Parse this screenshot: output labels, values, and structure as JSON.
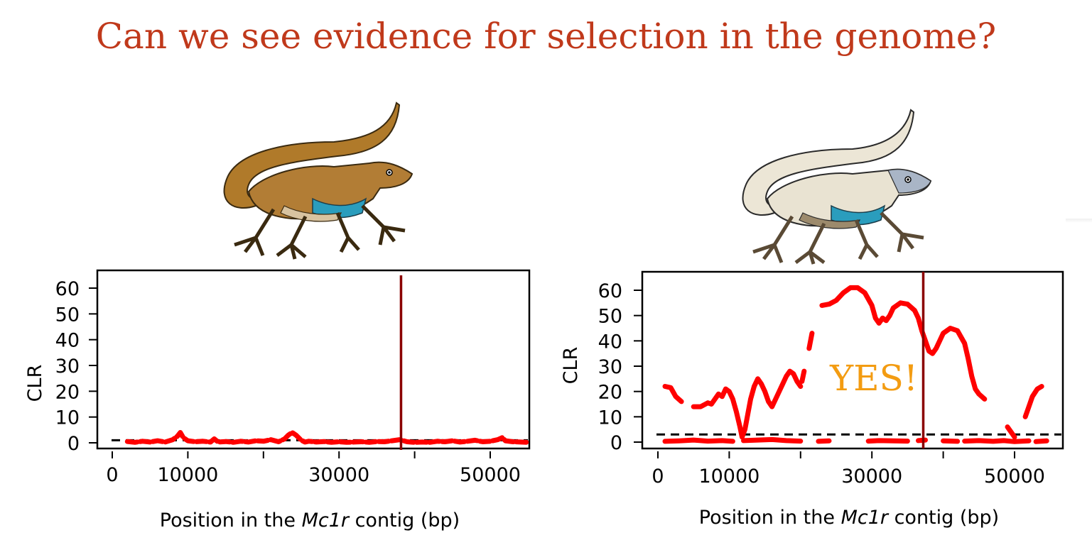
{
  "slide": {
    "title": "Can we see evidence for selection in the genome?"
  },
  "colors": {
    "title": "#c0391b",
    "series": "#ff0000",
    "gene_line": "#8b0000",
    "threshold": "#000000",
    "annotation": "#f39c12"
  },
  "images": {
    "left": "brown-lizard-illustration",
    "right": "pale-lizard-illustration"
  },
  "chart_data": [
    {
      "type": "scatter",
      "title": "",
      "ylabel": "CLR",
      "xlabel_parts": [
        "Position in the ",
        "Mc1r",
        " contig (bp)"
      ],
      "xlim": [
        0,
        56000
      ],
      "ylim": [
        -3,
        66
      ],
      "x_ticks": [
        0,
        10000,
        30000,
        50000
      ],
      "x_minor_ticks": [
        20000,
        40000
      ],
      "y_ticks": [
        0,
        10,
        20,
        30,
        40,
        50,
        60
      ],
      "threshold": 1,
      "gene_position": 38200,
      "annotation": "",
      "series": [
        {
          "segments": [
            [
              [
                2000,
                0.5
              ],
              [
                3000,
                0.2
              ],
              [
                4000,
                0.6
              ],
              [
                5000,
                0.3
              ],
              [
                6000,
                0.8
              ],
              [
                7000,
                0.3
              ],
              [
                8000,
                1.2
              ],
              [
                8600,
                2.5
              ],
              [
                9000,
                4
              ],
              [
                9400,
                2
              ],
              [
                10000,
                0.8
              ],
              [
                11000,
                0.4
              ],
              [
                12000,
                0.6
              ],
              [
                13000,
                0.3
              ],
              [
                13500,
                1.5
              ],
              [
                14000,
                0.3
              ],
              [
                15000,
                0.5
              ],
              [
                16000,
                0.2
              ],
              [
                17000,
                0.6
              ],
              [
                18000,
                0.3
              ],
              [
                19000,
                0.8
              ],
              [
                20000,
                0.6
              ],
              [
                21000,
                1.2
              ],
              [
                22000,
                0.4
              ],
              [
                22800,
                1.5
              ],
              [
                23300,
                3
              ],
              [
                23800,
                4
              ],
              [
                24300,
                3
              ],
              [
                25000,
                1
              ],
              [
                25500,
                0.3
              ],
              [
                26000,
                0.6
              ],
              [
                27000,
                0.3
              ],
              [
                28000,
                0.5
              ],
              [
                29000,
                0.2
              ],
              [
                30000,
                0.4
              ],
              [
                31000,
                0.2
              ],
              [
                32000,
                0.3
              ],
              [
                33000,
                0.4
              ],
              [
                34000,
                0.2
              ],
              [
                35000,
                0.5
              ],
              [
                36000,
                0.4
              ],
              [
                37000,
                0.8
              ],
              [
                38000,
                1.2
              ],
              [
                39000,
                0.4
              ],
              [
                40000,
                0.2
              ],
              [
                41000,
                0.3
              ],
              [
                42000,
                0.2
              ],
              [
                43000,
                0.6
              ],
              [
                44000,
                0.4
              ],
              [
                45000,
                0.8
              ],
              [
                46000,
                0.3
              ],
              [
                47000,
                0.6
              ],
              [
                48000,
                1
              ],
              [
                49000,
                0.4
              ],
              [
                50000,
                0.6
              ],
              [
                51000,
                1.2
              ],
              [
                51600,
                2
              ],
              [
                52000,
                0.8
              ],
              [
                53000,
                0.4
              ],
              [
                54000,
                0.3
              ],
              [
                55000,
                0.2
              ]
            ]
          ]
        }
      ]
    },
    {
      "type": "scatter",
      "title": "",
      "ylabel": "CLR",
      "xlabel_parts": [
        "Position in the ",
        "Mc1r",
        " contig (bp)"
      ],
      "xlim": [
        0,
        56000
      ],
      "ylim": [
        -2,
        66
      ],
      "x_ticks": [
        0,
        10000,
        30000,
        50000
      ],
      "x_minor_ticks": [
        20000,
        40000
      ],
      "y_ticks": [
        0,
        10,
        20,
        30,
        40,
        50,
        60
      ],
      "threshold": 3,
      "gene_position": 37200,
      "annotation": "YES!",
      "series": [
        {
          "segments": [
            [
              [
                1000,
                0.3
              ],
              [
                3000,
                0.5
              ],
              [
                5000,
                0.8
              ],
              [
                7000,
                0.4
              ],
              [
                9000,
                0.6
              ],
              [
                10500,
                0.3
              ]
            ],
            [
              [
                12000,
                0.6
              ],
              [
                14000,
                0.8
              ],
              [
                16000,
                1
              ],
              [
                18000,
                0.6
              ],
              [
                20000,
                0.4
              ]
            ],
            [
              [
                22500,
                0.3
              ],
              [
                24000,
                0.5
              ]
            ],
            [
              [
                29500,
                0.4
              ],
              [
                31000,
                0.6
              ],
              [
                33000,
                0.5
              ],
              [
                35000,
                0.4
              ]
            ],
            [
              [
                36500,
                0.6
              ],
              [
                37500,
                0.8
              ]
            ],
            [
              [
                40000,
                0.5
              ],
              [
                42000,
                0.3
              ]
            ],
            [
              [
                43000,
                0.4
              ],
              [
                45000,
                0.6
              ],
              [
                47000,
                0.3
              ],
              [
                48500,
                0.6
              ],
              [
                50000,
                0.2
              ],
              [
                52000,
                0.5
              ]
            ],
            [
              [
                53000,
                0.2
              ],
              [
                54500,
                0.5
              ]
            ],
            [
              [
                1000,
                22
              ],
              [
                1800,
                21.5
              ],
              [
                2500,
                18
              ],
              [
                3300,
                16
              ]
            ],
            [
              [
                5000,
                14
              ],
              [
                6000,
                14
              ],
              [
                7000,
                15.5
              ],
              [
                7500,
                15
              ],
              [
                8000,
                17
              ],
              [
                8500,
                19
              ],
              [
                9000,
                18
              ],
              [
                9500,
                21
              ],
              [
                10000,
                20
              ],
              [
                10500,
                17
              ],
              [
                11000,
                12
              ],
              [
                11500,
                6
              ],
              [
                11800,
                2
              ],
              [
                12200,
                5
              ],
              [
                12600,
                11
              ],
              [
                13000,
                17
              ],
              [
                13500,
                22
              ],
              [
                14000,
                25
              ],
              [
                14500,
                23
              ],
              [
                15000,
                20
              ],
              [
                15500,
                16
              ],
              [
                16000,
                14
              ],
              [
                16500,
                17
              ],
              [
                17000,
                20
              ],
              [
                17500,
                23
              ],
              [
                18000,
                26
              ],
              [
                18500,
                28
              ],
              [
                19000,
                27
              ],
              [
                19500,
                24
              ],
              [
                20000,
                22
              ]
            ],
            [
              [
                20200,
                24
              ],
              [
                20500,
                28
              ]
            ],
            [
              [
                21200,
                37
              ],
              [
                21600,
                43
              ]
            ],
            [
              [
                23000,
                54
              ],
              [
                24000,
                54.5
              ],
              [
                25000,
                56
              ],
              [
                26000,
                59
              ],
              [
                27000,
                61
              ],
              [
                28000,
                61
              ],
              [
                29000,
                59
              ],
              [
                30000,
                54
              ],
              [
                30500,
                49
              ],
              [
                31000,
                47
              ],
              [
                31500,
                49
              ],
              [
                32000,
                48
              ],
              [
                32500,
                50
              ],
              [
                33000,
                53
              ],
              [
                34000,
                55
              ],
              [
                35000,
                54.5
              ],
              [
                36000,
                52
              ],
              [
                36500,
                49
              ],
              [
                37000,
                44
              ],
              [
                37500,
                40
              ],
              [
                38000,
                36
              ],
              [
                38500,
                35
              ],
              [
                39000,
                37
              ],
              [
                39500,
                40
              ],
              [
                40000,
                43
              ],
              [
                41000,
                45
              ],
              [
                42000,
                44
              ],
              [
                43000,
                39
              ],
              [
                43500,
                33
              ],
              [
                44000,
                26
              ],
              [
                44500,
                21
              ],
              [
                45000,
                19
              ],
              [
                45800,
                17
              ]
            ],
            [
              [
                49000,
                6
              ],
              [
                49500,
                4
              ],
              [
                50000,
                2
              ]
            ],
            [
              [
                51500,
                10
              ],
              [
                52000,
                14
              ],
              [
                52500,
                18
              ],
              [
                53200,
                21
              ],
              [
                53800,
                22
              ]
            ]
          ]
        }
      ]
    }
  ]
}
